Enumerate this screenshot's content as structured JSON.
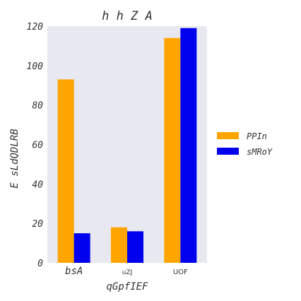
{
  "chart_data": {
    "type": "bar",
    "title": "h h Z A",
    "xlabel": "qGpfIEF",
    "ylabel": "E  sLdQDLRB",
    "categories": [
      "bsA",
      "uZJ",
      "UOF"
    ],
    "series": [
      {
        "name": "PPIn",
        "color": "#ffa500",
        "values": [
          93,
          18,
          114
        ]
      },
      {
        "name": "sMRoY",
        "color": "#0000ee",
        "values": [
          15,
          16,
          119
        ]
      }
    ],
    "ylim": [
      0,
      120
    ],
    "yticks": [
      0,
      20,
      40,
      60,
      80,
      100,
      120
    ],
    "grid": false,
    "legend_position": "right",
    "background_color": "#e8e8f0"
  }
}
